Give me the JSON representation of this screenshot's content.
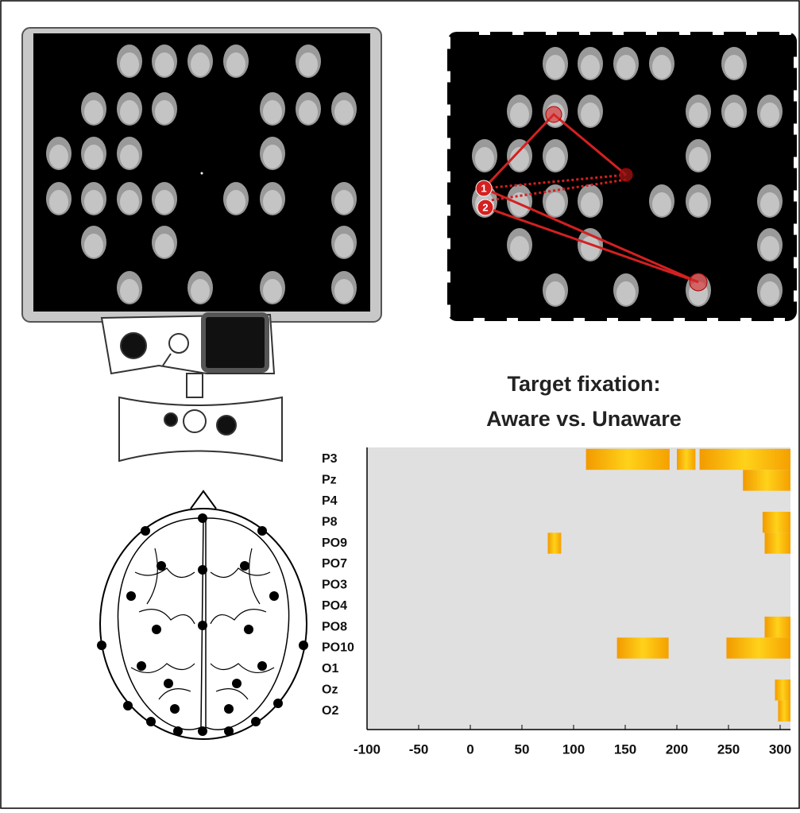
{
  "chart_data": {
    "type": "interval",
    "title": "Target fixation:",
    "subtitle": "Aware vs. Unaware",
    "categories": [
      "P3",
      "Pz",
      "P4",
      "P8",
      "PO9",
      "PO7",
      "PO3",
      "PO4",
      "PO8",
      "PO10",
      "O1",
      "Oz",
      "O2"
    ],
    "intervals": [
      [
        [
          112,
          193
        ],
        [
          200,
          218
        ],
        [
          222,
          310
        ]
      ],
      [
        [
          264,
          310
        ]
      ],
      [],
      [
        [
          283,
          310
        ]
      ],
      [
        [
          75,
          88
        ],
        [
          285,
          310
        ]
      ],
      [],
      [],
      [],
      [
        [
          285,
          310
        ]
      ],
      [
        [
          142,
          192
        ],
        [
          248,
          310
        ]
      ],
      [],
      [
        [
          295,
          310
        ]
      ],
      [
        [
          298,
          310
        ]
      ]
    ],
    "color": "#f5a000",
    "background": "#e0e0e0",
    "xlim": [
      -100,
      310
    ],
    "xticks": [
      -100,
      -50,
      0,
      50,
      100,
      150,
      200,
      250,
      300
    ]
  },
  "illustration": {
    "fixation_labels": [
      "1",
      "2"
    ]
  }
}
